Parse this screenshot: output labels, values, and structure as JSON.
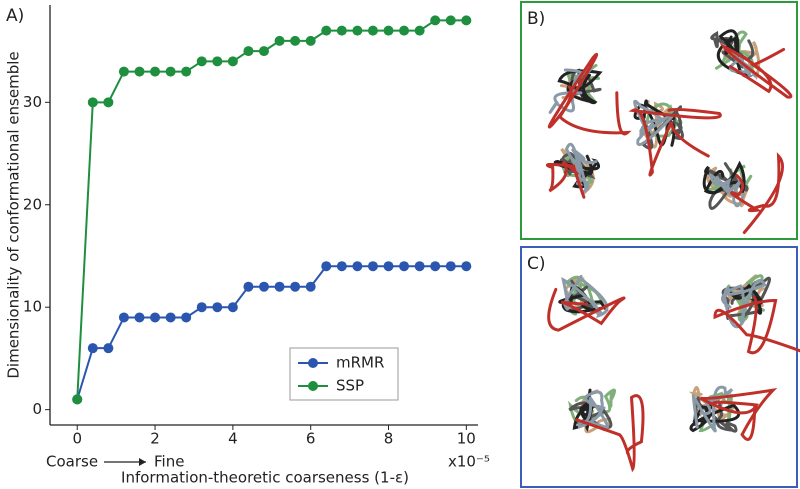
{
  "chart_data": {
    "type": "line",
    "panel_label": "A)",
    "y_label": "Dimensionality of conformational ensemble",
    "x_label": "Information-theoretic coarseness (1-ε)",
    "x_multiplier": "x10⁻⁵",
    "x_direction_start": "Coarse",
    "x_direction_end": "Fine",
    "x": [
      0,
      0.4,
      0.8,
      1.2,
      1.6,
      2.0,
      2.4,
      2.8,
      3.2,
      3.6,
      4.0,
      4.4,
      4.8,
      5.2,
      5.6,
      6.0,
      6.4,
      6.8,
      7.2,
      7.6,
      8.0,
      8.4,
      8.8,
      9.2,
      9.6,
      10.0
    ],
    "series": [
      {
        "name": "mRMR",
        "color": "#2a56b0",
        "values": [
          1,
          6,
          6,
          9,
          9,
          9,
          9,
          9,
          10,
          10,
          10,
          12,
          12,
          12,
          12,
          12,
          14,
          14,
          14,
          14,
          14,
          14,
          14,
          14,
          14,
          14
        ]
      },
      {
        "name": "SSP",
        "color": "#1e8f3e",
        "values": [
          1,
          30,
          30,
          33,
          33,
          33,
          33,
          33,
          34,
          34,
          34,
          35,
          35,
          36,
          36,
          36,
          37,
          37,
          37,
          37,
          37,
          37,
          37,
          38,
          38,
          38
        ]
      }
    ],
    "xlim": [
      -0.7,
      10.3
    ],
    "ylim": [
      -1.5,
      39.5
    ],
    "xticks": [
      0,
      2,
      4,
      6,
      8,
      10
    ],
    "yticks": [
      0,
      10,
      20,
      30
    ],
    "legend": "lower right"
  },
  "panels": [
    {
      "label": "B)",
      "color": "#2e9a3e"
    },
    {
      "label": "C)",
      "color": "#3a5fb8"
    }
  ]
}
